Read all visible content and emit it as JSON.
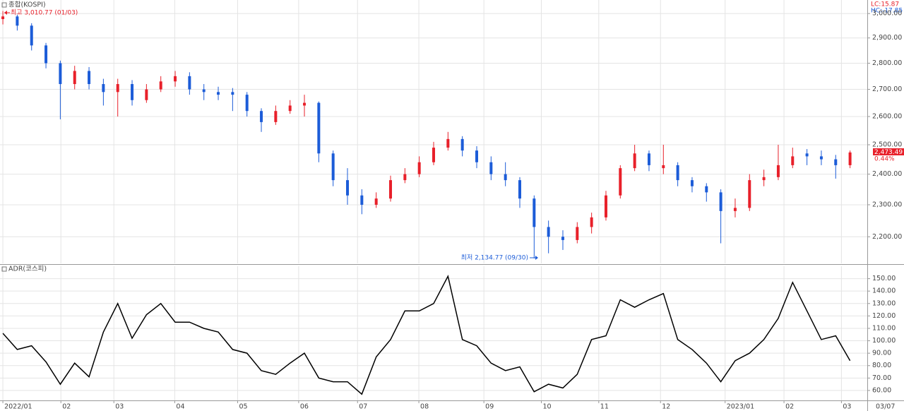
{
  "chart_data": [
    {
      "type": "candlestick",
      "title": "종합(KOSPI)",
      "log_scale": true,
      "grid": true,
      "up_color": "#e8202a",
      "down_color": "#1c5cd8",
      "x": [
        0,
        1,
        2,
        3,
        4,
        5,
        6,
        7,
        8,
        9,
        10,
        11,
        12,
        13,
        14,
        15,
        16,
        17,
        18,
        19,
        20,
        21,
        22,
        23,
        24,
        25,
        26,
        27,
        28,
        29,
        30,
        31,
        32,
        33,
        34,
        35,
        36,
        37,
        38,
        39,
        40,
        41,
        42,
        43,
        44,
        45,
        46,
        47,
        48,
        49,
        50,
        51,
        52,
        53,
        54,
        55,
        56,
        57,
        58,
        59
      ],
      "ohlc": [
        [
          2977,
          3010.77,
          2955,
          2988
        ],
        [
          2988,
          2995,
          2930,
          2950
        ],
        [
          2950,
          2960,
          2850,
          2870
        ],
        [
          2870,
          2880,
          2780,
          2800
        ],
        [
          2800,
          2810,
          2590,
          2720
        ],
        [
          2720,
          2790,
          2700,
          2770
        ],
        [
          2770,
          2785,
          2700,
          2720
        ],
        [
          2720,
          2740,
          2640,
          2690
        ],
        [
          2690,
          2740,
          2600,
          2720
        ],
        [
          2720,
          2735,
          2640,
          2660
        ],
        [
          2660,
          2720,
          2650,
          2700
        ],
        [
          2700,
          2750,
          2690,
          2730
        ],
        [
          2730,
          2770,
          2710,
          2750
        ],
        [
          2750,
          2765,
          2680,
          2700
        ],
        [
          2700,
          2720,
          2660,
          2690
        ],
        [
          2690,
          2710,
          2660,
          2680
        ],
        [
          2690,
          2705,
          2620,
          2680
        ],
        [
          2680,
          2690,
          2600,
          2620
        ],
        [
          2620,
          2630,
          2545,
          2580
        ],
        [
          2580,
          2640,
          2570,
          2620
        ],
        [
          2620,
          2660,
          2610,
          2640
        ],
        [
          2640,
          2680,
          2600,
          2650
        ],
        [
          2650,
          2655,
          2440,
          2470
        ],
        [
          2470,
          2480,
          2360,
          2380
        ],
        [
          2380,
          2420,
          2300,
          2330
        ],
        [
          2330,
          2350,
          2270,
          2300
        ],
        [
          2300,
          2340,
          2290,
          2320
        ],
        [
          2320,
          2395,
          2310,
          2380
        ],
        [
          2380,
          2420,
          2370,
          2400
        ],
        [
          2400,
          2460,
          2390,
          2440
        ],
        [
          2440,
          2510,
          2430,
          2490
        ],
        [
          2490,
          2545,
          2480,
          2520
        ],
        [
          2520,
          2530,
          2460,
          2480
        ],
        [
          2480,
          2495,
          2420,
          2440
        ],
        [
          2440,
          2460,
          2380,
          2400
        ],
        [
          2400,
          2440,
          2360,
          2380
        ],
        [
          2380,
          2390,
          2290,
          2320
        ],
        [
          2320,
          2330,
          2134.77,
          2230
        ],
        [
          2230,
          2250,
          2150,
          2200
        ],
        [
          2200,
          2220,
          2160,
          2190
        ],
        [
          2190,
          2245,
          2180,
          2230
        ],
        [
          2230,
          2275,
          2210,
          2260
        ],
        [
          2260,
          2345,
          2250,
          2330
        ],
        [
          2330,
          2430,
          2320,
          2420
        ],
        [
          2420,
          2500,
          2410,
          2470
        ],
        [
          2470,
          2480,
          2410,
          2430
        ],
        [
          2420,
          2500,
          2400,
          2430
        ],
        [
          2430,
          2440,
          2360,
          2380
        ],
        [
          2380,
          2390,
          2340,
          2360
        ],
        [
          2360,
          2370,
          2310,
          2340
        ],
        [
          2340,
          2350,
          2180,
          2280
        ],
        [
          2280,
          2320,
          2260,
          2290
        ],
        [
          2290,
          2400,
          2280,
          2380
        ],
        [
          2380,
          2415,
          2360,
          2390
        ],
        [
          2390,
          2500,
          2380,
          2430
        ],
        [
          2430,
          2490,
          2420,
          2460
        ],
        [
          2470,
          2485,
          2430,
          2460
        ],
        [
          2460,
          2480,
          2430,
          2450
        ],
        [
          2450,
          2465,
          2385,
          2430
        ],
        [
          2430,
          2480,
          2420,
          2473.49
        ]
      ],
      "xlim": [
        -0.2,
        60.2
      ],
      "ylim": [
        2120,
        3057
      ],
      "yticks": [
        {
          "value": 2200,
          "label": "2,200.00"
        },
        {
          "value": 2300,
          "label": "2,300.00"
        },
        {
          "value": 2400,
          "label": "2,400.00"
        },
        {
          "value": 2500,
          "label": "2,500.00"
        },
        {
          "value": 2600,
          "label": "2,600.00"
        },
        {
          "value": 2700,
          "label": "2,700.00"
        },
        {
          "value": 2800,
          "label": "2,800.00"
        },
        {
          "value": 2900,
          "label": "2,900.00"
        },
        {
          "value": 3000,
          "label": "3,000.00"
        }
      ],
      "annotations": {
        "high": "최고 3,010.77 (01/03)",
        "low": "최저 2,134.77 (09/30)",
        "lc": "LC:15.87",
        "hc": "HC:-17.85",
        "last": "2,473.49",
        "change": "0.44%"
      }
    },
    {
      "type": "line",
      "title": "ADR(코스피)",
      "color": "#000000",
      "grid": true,
      "x": [
        0,
        1,
        2,
        3,
        4,
        5,
        6,
        7,
        8,
        9,
        10,
        11,
        12,
        13,
        14,
        15,
        16,
        17,
        18,
        19,
        20,
        21,
        22,
        23,
        24,
        25,
        26,
        27,
        28,
        29,
        30,
        31,
        32,
        33,
        34,
        35,
        36,
        37,
        38,
        39,
        40,
        41,
        42,
        43,
        44,
        45,
        46,
        47,
        48,
        49,
        50,
        51,
        52,
        53,
        54,
        55,
        56,
        57,
        58,
        59
      ],
      "values": [
        106,
        93,
        96,
        83,
        65,
        82,
        71,
        107,
        130,
        102,
        121,
        130,
        115,
        115,
        110,
        107,
        93,
        90,
        76,
        73,
        82,
        90,
        70,
        67,
        67,
        57,
        87,
        101,
        124,
        124,
        130,
        152,
        101,
        96,
        82,
        76,
        79,
        59,
        65,
        62,
        73,
        101,
        104,
        133,
        127,
        133,
        138,
        101,
        93,
        82,
        67,
        84,
        90,
        101,
        118,
        147,
        124,
        101,
        104,
        84
      ],
      "xlim": [
        -0.2,
        60.2
      ],
      "ylim": [
        52,
        160
      ],
      "yticks": [
        {
          "value": 60,
          "label": "60.00"
        },
        {
          "value": 70,
          "label": "70.00"
        },
        {
          "value": 80,
          "label": "80.00"
        },
        {
          "value": 90,
          "label": "90.00"
        },
        {
          "value": 100,
          "label": "100.00"
        },
        {
          "value": 110,
          "label": "110.00"
        },
        {
          "value": 120,
          "label": "120.00"
        },
        {
          "value": 130,
          "label": "130.00"
        },
        {
          "value": 140,
          "label": "140.00"
        },
        {
          "value": 150,
          "label": "150.00"
        }
      ],
      "xticks": [
        {
          "value": 0,
          "label": "2022/01"
        },
        {
          "value": 4.04,
          "label": "02"
        },
        {
          "value": 7.73,
          "label": "03"
        },
        {
          "value": 11.97,
          "label": "04"
        },
        {
          "value": 16.35,
          "label": "05"
        },
        {
          "value": 20.6,
          "label": "06"
        },
        {
          "value": 24.7,
          "label": "07"
        },
        {
          "value": 28.97,
          "label": "08"
        },
        {
          "value": 33.5,
          "label": "09"
        },
        {
          "value": 37.5,
          "label": "10"
        },
        {
          "value": 41.5,
          "label": "11"
        },
        {
          "value": 45.8,
          "label": "12"
        },
        {
          "value": 50.3,
          "label": "2023/01"
        },
        {
          "value": 54.4,
          "label": "02"
        },
        {
          "value": 58.4,
          "label": "03"
        }
      ],
      "x_end_label": "03/07"
    }
  ]
}
